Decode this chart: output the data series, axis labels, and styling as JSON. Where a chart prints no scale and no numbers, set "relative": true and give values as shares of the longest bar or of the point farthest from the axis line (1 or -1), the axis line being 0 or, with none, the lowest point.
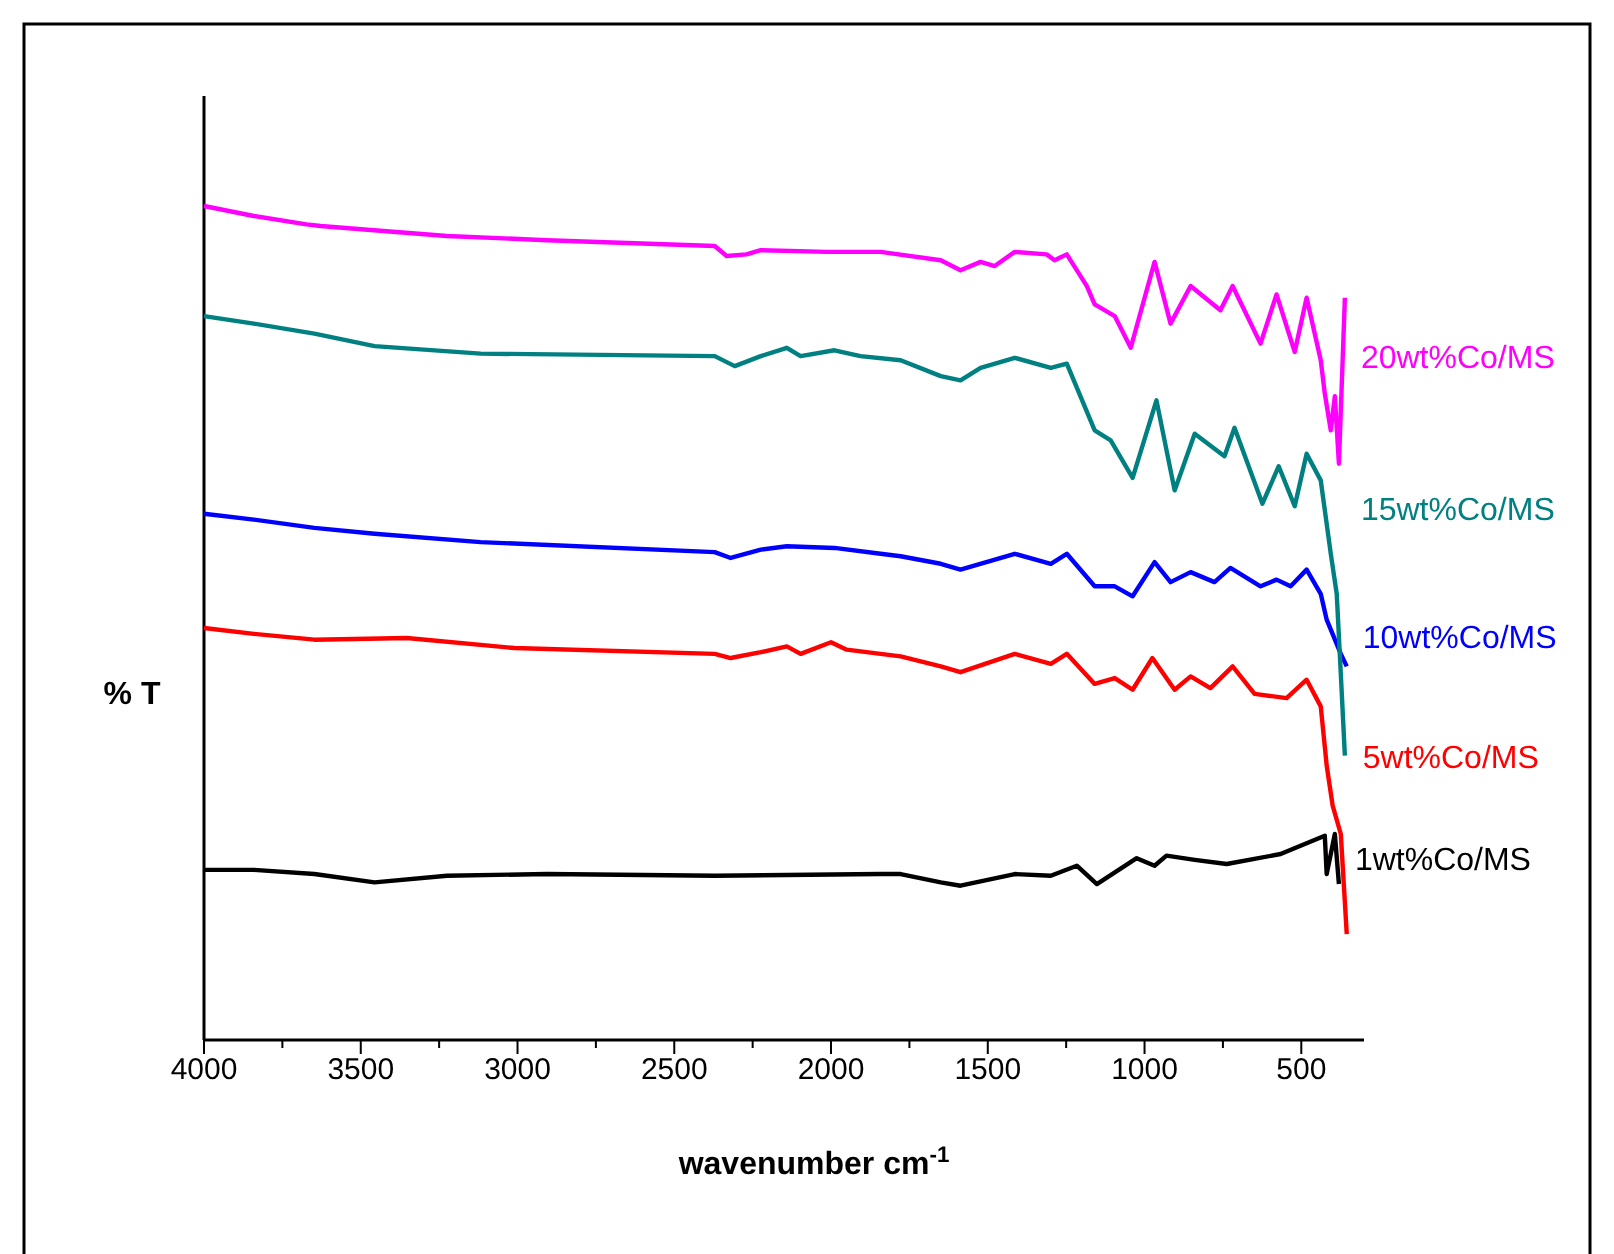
{
  "chart_data": {
    "type": "line",
    "relative": true,
    "xlabel": "wavenumber cm$^{-1}$",
    "ylabel": "% T",
    "xlim": [
      4000,
      300
    ],
    "xticks": [
      4000,
      {
        "value": 3750,
        "label": null
      },
      3500,
      {
        "value": 3250,
        "label": null
      },
      3000,
      {
        "value": 2750,
        "label": null
      },
      2500,
      {
        "value": 2250,
        "label": null
      },
      2000,
      {
        "value": 1750,
        "label": null
      },
      1500,
      {
        "value": 1250,
        "label": null
      },
      1000,
      {
        "value": 750,
        "label": null
      },
      500
    ],
    "grid": false,
    "legend": false,
    "marker": "none",
    "line_style": "solid",
    "series": [
      {
        "name": "1wt%Co/MS",
        "color": "#000000",
        "x": [
          4000,
          3841,
          3648,
          3456,
          3225,
          2906,
          2371,
          1842,
          1778,
          1650,
          1587,
          1414,
          1299,
          1216,
          1152,
          1025,
          968,
          930,
          840,
          738,
          566,
          425,
          419,
          393,
          380
        ],
        "values": [
          0.204,
          0.204,
          0.199,
          0.189,
          0.197,
          0.199,
          0.197,
          0.199,
          0.199,
          0.189,
          0.185,
          0.199,
          0.197,
          0.209,
          0.187,
          0.218,
          0.209,
          0.221,
          0.216,
          0.211,
          0.223,
          0.245,
          0.199,
          0.247,
          0.187
        ]
      },
      {
        "name": "5wt%Co/MS",
        "color": "#ff0000",
        "x": [
          4000,
          3841,
          3648,
          3353,
          3010,
          2371,
          2320,
          2224,
          2141,
          2097,
          2000,
          1950,
          1842,
          1778,
          1650,
          1587,
          1414,
          1299,
          1248,
          1159,
          1095,
          1038,
          975,
          904,
          853,
          790,
          719,
          649,
          547,
          483,
          438,
          419,
          400,
          374,
          355
        ],
        "values": [
          0.494,
          0.487,
          0.48,
          0.482,
          0.47,
          0.463,
          0.458,
          0.465,
          0.472,
          0.463,
          0.477,
          0.468,
          0.463,
          0.46,
          0.448,
          0.441,
          0.463,
          0.451,
          0.463,
          0.427,
          0.434,
          0.42,
          0.458,
          0.42,
          0.436,
          0.422,
          0.448,
          0.415,
          0.41,
          0.432,
          0.4,
          0.329,
          0.281,
          0.247,
          0.127
        ]
      },
      {
        "name": "10wt%Co/MS",
        "color": "#0000ff",
        "x": [
          4000,
          3841,
          3648,
          3456,
          3118,
          2371,
          2320,
          2224,
          2141,
          1989,
          1842,
          1778,
          1650,
          1587,
          1414,
          1299,
          1248,
          1159,
          1095,
          1038,
          968,
          917,
          853,
          777,
          726,
          630,
          579,
          534,
          483,
          438,
          419,
          374,
          355
        ],
        "values": [
          0.631,
          0.624,
          0.614,
          0.607,
          0.597,
          0.585,
          0.578,
          0.588,
          0.592,
          0.59,
          0.583,
          0.58,
          0.571,
          0.564,
          0.583,
          0.571,
          0.583,
          0.544,
          0.544,
          0.532,
          0.573,
          0.549,
          0.561,
          0.549,
          0.566,
          0.544,
          0.552,
          0.544,
          0.564,
          0.535,
          0.504,
          0.463,
          0.448
        ]
      },
      {
        "name": "15wt%Co/MS",
        "color": "#008080",
        "x": [
          4000,
          3841,
          3648,
          3456,
          3118,
          2371,
          2307,
          2224,
          2141,
          2097,
          1989,
          1906,
          1778,
          1650,
          1587,
          1523,
          1414,
          1299,
          1248,
          1159,
          1108,
          1038,
          962,
          904,
          840,
          745,
          713,
          624,
          572,
          521,
          483,
          438,
          406,
          387,
          374,
          361
        ],
        "values": [
          0.868,
          0.859,
          0.847,
          0.832,
          0.823,
          0.82,
          0.808,
          0.82,
          0.83,
          0.82,
          0.827,
          0.82,
          0.815,
          0.796,
          0.791,
          0.806,
          0.818,
          0.806,
          0.811,
          0.731,
          0.719,
          0.674,
          0.767,
          0.659,
          0.727,
          0.7,
          0.734,
          0.643,
          0.688,
          0.64,
          0.703,
          0.671,
          0.583,
          0.535,
          0.439,
          0.341
        ]
      },
      {
        "name": "20wt%Co/MS",
        "color": "#ff00ff",
        "x": [
          4000,
          3841,
          3673,
          3628,
          3458,
          3225,
          2906,
          2371,
          2333,
          2270,
          2224,
          2013,
          1842,
          1650,
          1587,
          1523,
          1478,
          1414,
          1312,
          1287,
          1248,
          1184,
          1159,
          1095,
          1044,
          968,
          917,
          853,
          758,
          719,
          630,
          579,
          521,
          483,
          438,
          425,
          406,
          393,
          380,
          361
        ],
        "values": [
          1.0,
          0.988,
          0.978,
          0.976,
          0.971,
          0.964,
          0.959,
          0.952,
          0.94,
          0.942,
          0.947,
          0.945,
          0.945,
          0.935,
          0.923,
          0.933,
          0.928,
          0.945,
          0.942,
          0.935,
          0.942,
          0.904,
          0.882,
          0.868,
          0.83,
          0.933,
          0.859,
          0.904,
          0.875,
          0.904,
          0.835,
          0.894,
          0.825,
          0.89,
          0.815,
          0.775,
          0.731,
          0.772,
          0.691,
          0.89
        ]
      }
    ]
  }
}
